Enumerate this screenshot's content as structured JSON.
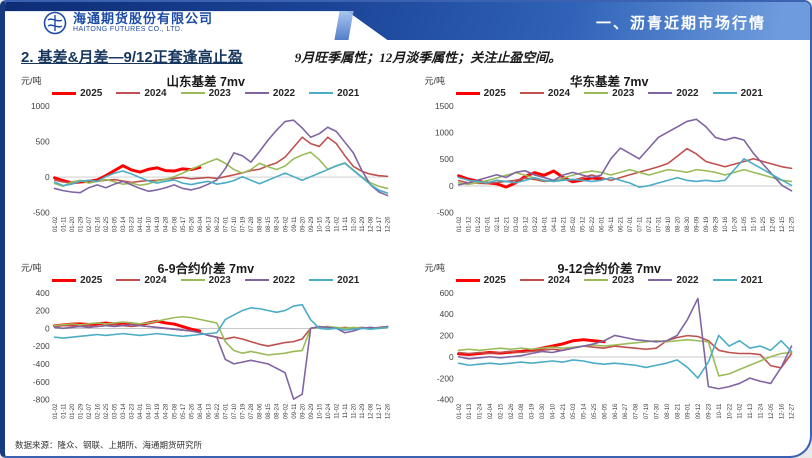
{
  "header": {
    "company_cn": "海通期货股份有限公司",
    "company_en": "HAITONG FUTURES CO., LTD.",
    "section_title": "一、沥青近期市场行情"
  },
  "slide": {
    "title": "2. 基差&月差—9/12正套逢高止盈",
    "subtitle": "9月旺季属性；12月淡季属性；关注止盈空间。",
    "footnote": "数据来源：隆众、钢联、上期所、海通期货研究所"
  },
  "colors": {
    "banner_dark": "#0d2d76",
    "banner_light": "#6e9bdd",
    "logo_blue": "#1c4ba8",
    "title_navy": "#17365d",
    "zero_line": "#c8c8c8",
    "s2025": "#ff0000",
    "s2024": "#c0504d",
    "s2023": "#9bbb59",
    "s2022": "#8064a2",
    "s2021": "#4bacc6"
  },
  "chart_data": [
    {
      "type": "line",
      "title": "山东基差 7mv",
      "unit": "元/吨",
      "ylim": [
        -500,
        1000
      ],
      "yticks": [
        1000,
        500,
        0,
        -500
      ],
      "legend_position": "top",
      "grid": "zero-line-only",
      "categories": [
        "01-02",
        "01-11",
        "01-20",
        "01-29",
        "02-07",
        "02-16",
        "02-25",
        "03-05",
        "03-14",
        "03-23",
        "04-01",
        "04-10",
        "04-19",
        "04-28",
        "05-08",
        "05-17",
        "05-26",
        "06-04",
        "06-13",
        "06-22",
        "07-01",
        "07-10",
        "07-19",
        "07-28",
        "08-06",
        "08-15",
        "08-24",
        "09-02",
        "09-11",
        "09-20",
        "09-29",
        "10-15",
        "10-24",
        "11-02",
        "11-11",
        "11-20",
        "11-29",
        "12-08",
        "12-17",
        "12-26"
      ],
      "series": [
        {
          "name": "2025",
          "color": "#ff0000",
          "width": 3,
          "values": [
            -10,
            -50,
            -80,
            -70,
            -60,
            -40,
            20,
            90,
            160,
            100,
            70,
            110,
            130,
            90,
            85,
            115,
            105,
            135,
            null,
            null,
            null,
            null,
            null,
            null,
            null,
            null,
            null,
            null,
            null,
            null,
            null,
            null,
            null,
            null,
            null,
            null,
            null,
            null,
            null,
            null
          ]
        },
        {
          "name": "2024",
          "color": "#c0504d",
          "width": 1.6,
          "values": [
            -40,
            -70,
            -80,
            -60,
            -55,
            -60,
            -45,
            -35,
            -55,
            -75,
            -60,
            -50,
            -45,
            -30,
            -20,
            -5,
            -25,
            -15,
            -5,
            -20,
            5,
            30,
            60,
            90,
            110,
            160,
            200,
            280,
            420,
            560,
            470,
            430,
            560,
            470,
            300,
            150,
            80,
            40,
            20,
            10
          ]
        },
        {
          "name": "2023",
          "color": "#9bbb59",
          "width": 1.6,
          "values": [
            -90,
            -130,
            -70,
            -45,
            -85,
            -60,
            -35,
            -65,
            -100,
            -85,
            -115,
            -95,
            -55,
            -35,
            5,
            55,
            110,
            160,
            210,
            255,
            195,
            105,
            55,
            105,
            195,
            145,
            105,
            155,
            255,
            310,
            350,
            245,
            110,
            160,
            200,
            100,
            0,
            -80,
            -130,
            -160
          ]
        },
        {
          "name": "2022",
          "color": "#8064a2",
          "width": 1.6,
          "values": [
            -160,
            -190,
            -210,
            -220,
            -150,
            -110,
            -150,
            -100,
            -60,
            -110,
            -160,
            -200,
            -180,
            -150,
            -110,
            -160,
            -180,
            -150,
            -100,
            -40,
            120,
            340,
            300,
            210,
            360,
            520,
            660,
            780,
            800,
            690,
            560,
            610,
            700,
            640,
            490,
            340,
            90,
            -110,
            -210,
            -260
          ]
        },
        {
          "name": "2021",
          "color": "#4bacc6",
          "width": 1.6,
          "values": [
            -70,
            -120,
            -100,
            -60,
            -45,
            -60,
            5,
            55,
            85,
            45,
            -5,
            -55,
            -85,
            -60,
            -40,
            -85,
            -105,
            -80,
            -60,
            -100,
            -80,
            -50,
            5,
            -45,
            -95,
            -45,
            5,
            55,
            5,
            -45,
            5,
            55,
            105,
            155,
            195,
            95,
            -5,
            -105,
            -185,
            -225
          ]
        }
      ]
    },
    {
      "type": "line",
      "title": "华东基差 7mv",
      "unit": "元/吨",
      "ylim": [
        -500,
        1500
      ],
      "yticks": [
        1500,
        1000,
        500,
        0,
        -500
      ],
      "legend_position": "top",
      "grid": "zero-line-only",
      "categories": [
        "01-02",
        "01-12",
        "01-22",
        "02-01",
        "02-11",
        "02-21",
        "03-02",
        "03-12",
        "03-22",
        "04-01",
        "04-11",
        "04-21",
        "05-02",
        "05-12",
        "05-22",
        "06-01",
        "06-11",
        "06-21",
        "07-01",
        "07-11",
        "07-21",
        "07-31",
        "08-10",
        "08-20",
        "08-30",
        "09-09",
        "09-19",
        "09-29",
        "10-16",
        "10-26",
        "11-05",
        "11-15",
        "11-25",
        "12-05",
        "12-15",
        "12-25"
      ],
      "series": [
        {
          "name": "2025",
          "color": "#ff0000",
          "width": 3,
          "values": [
            190,
            130,
            90,
            60,
            40,
            -20,
            60,
            180,
            250,
            200,
            280,
            160,
            80,
            110,
            150,
            130,
            null,
            null,
            null,
            null,
            null,
            null,
            null,
            null,
            null,
            null,
            null,
            null,
            null,
            null,
            null,
            null,
            null,
            null,
            null,
            null
          ]
        },
        {
          "name": "2024",
          "color": "#c0504d",
          "width": 1.6,
          "values": [
            100,
            60,
            50,
            45,
            65,
            85,
            105,
            150,
            120,
            85,
            105,
            125,
            105,
            155,
            205,
            155,
            105,
            155,
            210,
            260,
            310,
            360,
            420,
            560,
            700,
            600,
            460,
            410,
            360,
            410,
            460,
            510,
            460,
            410,
            360,
            330
          ]
        },
        {
          "name": "2023",
          "color": "#9bbb59",
          "width": 1.6,
          "values": [
            60,
            30,
            60,
            100,
            150,
            200,
            250,
            200,
            150,
            100,
            85,
            150,
            200,
            250,
            280,
            255,
            205,
            255,
            305,
            255,
            205,
            255,
            305,
            285,
            255,
            305,
            285,
            255,
            205,
            255,
            305,
            255,
            205,
            155,
            105,
            85
          ]
        },
        {
          "name": "2022",
          "color": "#8064a2",
          "width": 1.6,
          "values": [
            20,
            60,
            110,
            160,
            210,
            160,
            255,
            285,
            205,
            155,
            105,
            205,
            255,
            205,
            155,
            205,
            510,
            710,
            610,
            510,
            710,
            910,
            1010,
            1110,
            1210,
            1250,
            1110,
            910,
            860,
            910,
            860,
            610,
            410,
            210,
            10,
            -90
          ]
        },
        {
          "name": "2021",
          "color": "#4bacc6",
          "width": 1.6,
          "values": [
            160,
            110,
            85,
            60,
            105,
            85,
            60,
            105,
            155,
            105,
            85,
            105,
            125,
            105,
            85,
            105,
            155,
            105,
            55,
            -25,
            5,
            55,
            105,
            155,
            105,
            85,
            105,
            85,
            105,
            310,
            510,
            410,
            310,
            210,
            110,
            10
          ]
        }
      ]
    },
    {
      "type": "line",
      "title": "6-9合约价差 7mv",
      "unit": "元/吨",
      "ylim": [
        -800,
        400
      ],
      "yticks": [
        400,
        200,
        0,
        -200,
        -400,
        -600,
        -800
      ],
      "legend_position": "top",
      "grid": "zero-line-only",
      "categories": [
        "01-02",
        "01-11",
        "01-20",
        "01-29",
        "02-07",
        "02-16",
        "02-25",
        "03-05",
        "03-14",
        "03-23",
        "04-01",
        "04-10",
        "04-19",
        "04-28",
        "05-08",
        "05-17",
        "05-26",
        "06-04",
        "06-13",
        "06-22",
        "07-01",
        "07-10",
        "07-19",
        "07-28",
        "08-06",
        "08-15",
        "08-24",
        "09-02",
        "09-11",
        "09-20",
        "09-29",
        "10-15",
        "10-24",
        "11-02",
        "11-11",
        "11-20",
        "11-29",
        "12-08",
        "12-17",
        "12-26"
      ],
      "series": [
        {
          "name": "2025",
          "color": "#ff0000",
          "width": 3,
          "values": [
            30,
            40,
            50,
            52,
            45,
            52,
            60,
            52,
            62,
            55,
            42,
            62,
            82,
            62,
            50,
            22,
            -8,
            -28,
            null,
            null,
            null,
            null,
            null,
            null,
            null,
            null,
            null,
            null,
            null,
            null,
            null,
            null,
            null,
            null,
            null,
            null,
            null,
            null,
            null,
            null
          ]
        },
        {
          "name": "2024",
          "color": "#c0504d",
          "width": 1.6,
          "values": [
            22,
            32,
            30,
            22,
            32,
            22,
            32,
            42,
            32,
            22,
            32,
            22,
            12,
            2,
            -8,
            -18,
            -28,
            -48,
            -78,
            -98,
            -118,
            -98,
            -118,
            -148,
            -178,
            -198,
            -178,
            -158,
            -148,
            -118,
            2,
            12,
            22,
            2,
            12,
            2,
            12,
            2,
            12,
            22
          ]
        },
        {
          "name": "2023",
          "color": "#9bbb59",
          "width": 1.6,
          "values": [
            32,
            42,
            52,
            42,
            52,
            62,
            52,
            62,
            72,
            62,
            52,
            62,
            82,
            102,
            122,
            132,
            122,
            102,
            82,
            62,
            -148,
            -248,
            -278,
            -258,
            -278,
            -298,
            -288,
            -278,
            -258,
            -248,
            2,
            12,
            22,
            12,
            2,
            12,
            2,
            12,
            2,
            12
          ]
        },
        {
          "name": "2022",
          "color": "#8064a2",
          "width": 1.6,
          "values": [
            12,
            2,
            12,
            22,
            12,
            22,
            32,
            22,
            32,
            42,
            32,
            22,
            12,
            2,
            -8,
            -18,
            -28,
            -48,
            -78,
            -98,
            -348,
            -398,
            -378,
            -358,
            -378,
            -398,
            -448,
            -498,
            -795,
            -740,
            2,
            22,
            12,
            2,
            -48,
            -28,
            2,
            12,
            2,
            22
          ]
        },
        {
          "name": "2021",
          "color": "#4bacc6",
          "width": 1.6,
          "values": [
            -98,
            -108,
            -98,
            -88,
            -78,
            -68,
            -78,
            -68,
            -58,
            -68,
            -78,
            -68,
            -58,
            -68,
            -78,
            -88,
            -78,
            -68,
            -58,
            -48,
            102,
            152,
            202,
            232,
            222,
            202,
            182,
            202,
            252,
            268,
            98,
            2,
            -8,
            2,
            -18,
            -8,
            2,
            -8,
            2,
            12
          ]
        }
      ]
    },
    {
      "type": "line",
      "title": "9-12合约价差 7mv",
      "unit": "元/吨",
      "ylim": [
        -400,
        600
      ],
      "yticks": [
        600,
        400,
        200,
        0,
        -200,
        -400
      ],
      "legend_position": "top",
      "grid": "zero-line-only",
      "categories": [
        "01-02",
        "01-13",
        "01-24",
        "02-04",
        "02-15",
        "02-26",
        "03-08",
        "03-19",
        "03-30",
        "04-10",
        "04-21",
        "05-03",
        "05-14",
        "05-25",
        "06-05",
        "06-16",
        "06-27",
        "07-08",
        "07-19",
        "07-30",
        "08-10",
        "08-21",
        "09-01",
        "09-12",
        "09-23",
        "10-11",
        "10-22",
        "11-02",
        "11-13",
        "11-24",
        "12-05",
        "12-16",
        "12-27"
      ],
      "series": [
        {
          "name": "2025",
          "color": "#ff0000",
          "width": 3,
          "values": [
            30,
            22,
            32,
            42,
            35,
            45,
            52,
            62,
            82,
            102,
            122,
            152,
            162,
            152,
            142,
            null,
            null,
            null,
            null,
            null,
            null,
            null,
            null,
            null,
            null,
            null,
            null,
            null,
            null,
            null,
            null,
            null,
            null
          ]
        },
        {
          "name": "2024",
          "color": "#c0504d",
          "width": 1.6,
          "values": [
            42,
            32,
            42,
            32,
            42,
            52,
            42,
            52,
            62,
            72,
            62,
            82,
            102,
            92,
            82,
            102,
            92,
            82,
            72,
            82,
            152,
            182,
            200,
            192,
            152,
            62,
            42,
            32,
            32,
            22,
            -82,
            -102,
            32
          ]
        },
        {
          "name": "2023",
          "color": "#9bbb59",
          "width": 1.6,
          "values": [
            62,
            72,
            62,
            72,
            82,
            72,
            82,
            72,
            82,
            92,
            82,
            92,
            102,
            112,
            102,
            112,
            122,
            132,
            142,
            152,
            142,
            152,
            162,
            152,
            142,
            -178,
            -158,
            -118,
            -78,
            -38,
            2,
            32,
            42
          ]
        },
        {
          "name": "2022",
          "color": "#8064a2",
          "width": 1.6,
          "values": [
            2,
            -18,
            -8,
            2,
            -8,
            2,
            12,
            32,
            52,
            42,
            62,
            82,
            102,
            122,
            152,
            202,
            182,
            162,
            152,
            142,
            152,
            202,
            352,
            548,
            -278,
            -298,
            -278,
            -248,
            -198,
            -228,
            -248,
            -98,
            102
          ]
        },
        {
          "name": "2021",
          "color": "#4bacc6",
          "width": 1.6,
          "values": [
            -58,
            -78,
            -68,
            -58,
            -68,
            -58,
            -48,
            -58,
            -48,
            -38,
            -48,
            -28,
            -38,
            -58,
            -68,
            -58,
            -68,
            -78,
            -98,
            -78,
            -58,
            -28,
            -98,
            -198,
            -48,
            202,
            102,
            152,
            82,
            102,
            62,
            152,
            52
          ]
        }
      ]
    }
  ]
}
